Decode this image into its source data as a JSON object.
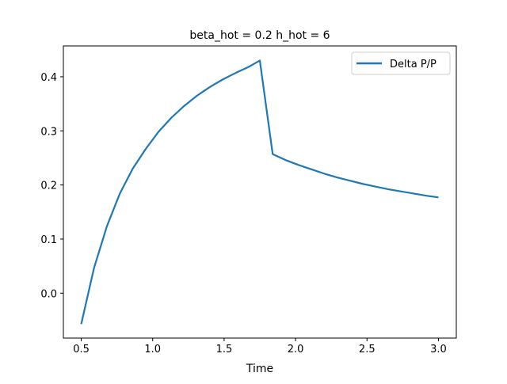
{
  "chart_data": {
    "type": "line",
    "title": "beta_hot = 0.2 h_hot = 6",
    "xlabel": "Time",
    "ylabel": "",
    "xlim": [
      0.375,
      3.125
    ],
    "ylim": [
      -0.083,
      0.457
    ],
    "xticks": [
      0.5,
      1.0,
      1.5,
      2.0,
      2.5,
      3.0
    ],
    "xtick_labels": [
      "0.5",
      "1.0",
      "1.5",
      "2.0",
      "2.5",
      "3.0"
    ],
    "yticks": [
      0.0,
      0.1,
      0.2,
      0.3,
      0.4
    ],
    "ytick_labels": [
      "0.0",
      "0.1",
      "0.2",
      "0.3",
      "0.4"
    ],
    "grid": false,
    "legend_position": "upper right",
    "series": [
      {
        "name": "Delta P/P",
        "color": "#1f77b4",
        "x": [
          0.5,
          0.59,
          0.68,
          0.77,
          0.86,
          0.95,
          1.04,
          1.13,
          1.22,
          1.31,
          1.4,
          1.49,
          1.58,
          1.67,
          1.75,
          1.84,
          1.93,
          2.02,
          2.11,
          2.2,
          2.29,
          2.38,
          2.47,
          2.56,
          2.65,
          2.74,
          2.83,
          2.92,
          3.0
        ],
        "y": [
          -0.057,
          0.047,
          0.124,
          0.184,
          0.23,
          0.266,
          0.298,
          0.324,
          0.346,
          0.365,
          0.381,
          0.395,
          0.407,
          0.418,
          0.43,
          0.257,
          0.246,
          0.237,
          0.229,
          0.221,
          0.214,
          0.208,
          0.202,
          0.197,
          0.192,
          0.188,
          0.184,
          0.18,
          0.177
        ]
      }
    ]
  }
}
